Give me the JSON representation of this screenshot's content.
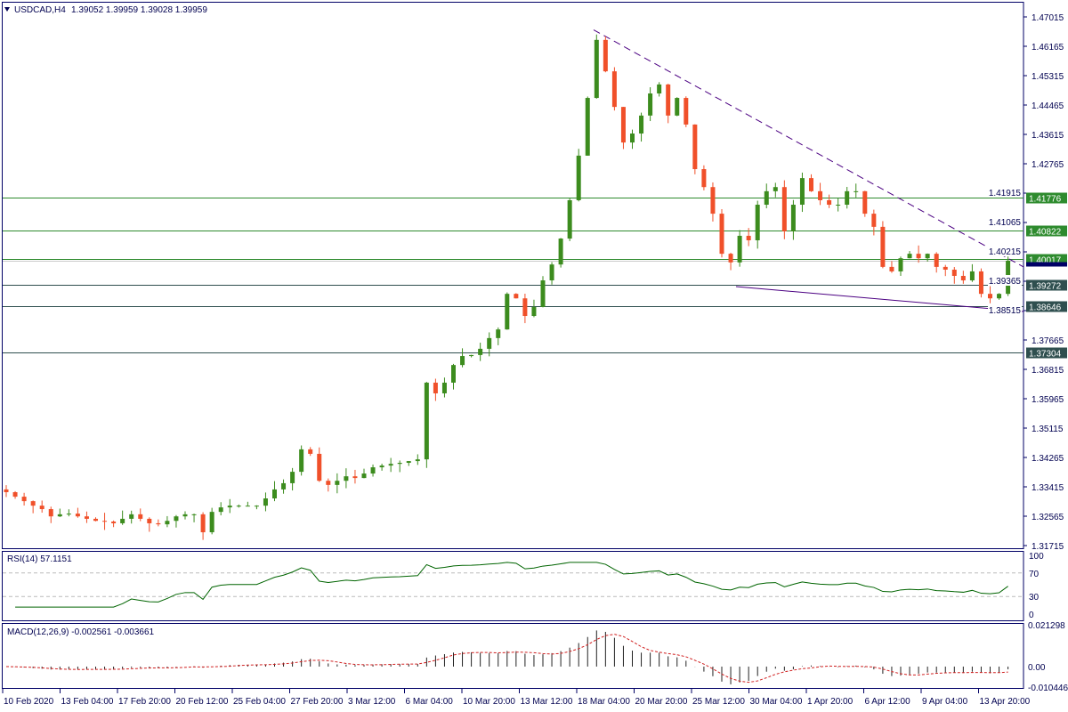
{
  "header": {
    "symbol": "USDCAD,H4",
    "ohlc": "1.39052 1.39959 1.39028 1.39959"
  },
  "colors": {
    "frame": "#000066",
    "bull": "#3c8c1e",
    "bear": "#f0502a",
    "support_line_green": "#2e8b2e",
    "support_line_slate": "#2f4f4f",
    "current_price": "#000066",
    "trendline": "#4b0082",
    "rsi": "#006400",
    "macd_signal": "#d02020"
  },
  "chart_data": {
    "type": "candlestick",
    "title": "USDCAD,H4",
    "price_ticks": [
      "1.47015",
      "1.46165",
      "1.45315",
      "1.44465",
      "1.43615",
      "1.42765",
      "1.41915",
      "1.41065",
      "1.40215",
      "1.39365",
      "1.38515",
      "1.37665",
      "1.36815",
      "1.35965",
      "1.35115",
      "1.34265",
      "1.33415",
      "1.32565",
      "1.31715"
    ],
    "ylim": [
      1.31715,
      1.47015
    ],
    "time_ticks": [
      "10 Feb 2020",
      "13 Feb 04:00",
      "17 Feb 20:00",
      "20 Feb 12:00",
      "25 Feb 04:00",
      "27 Feb 20:00",
      "3 Mar 12:00",
      "6 Mar 04:00",
      "10 Mar 20:00",
      "13 Mar 12:00",
      "18 Mar 04:00",
      "20 Mar 20:00",
      "25 Mar 12:00",
      "30 Mar 04:00",
      "1 Apr 20:00",
      "6 Apr 12:00",
      "9 Apr 04:00",
      "13 Apr 20:00"
    ],
    "closes": [
      1.3326,
      1.3313,
      1.33,
      1.3287,
      1.3277,
      1.3256,
      1.3262,
      1.3264,
      1.3256,
      1.3249,
      1.3243,
      1.3241,
      1.3236,
      1.3249,
      1.3262,
      1.3249,
      1.3236,
      1.3233,
      1.3243,
      1.3256,
      1.3262,
      1.3262,
      1.321,
      1.3269,
      1.3282,
      1.3287,
      1.3287,
      1.3287,
      1.3287,
      1.3308,
      1.3334,
      1.3352,
      1.3385,
      1.345,
      1.3437,
      1.3359,
      1.3347,
      1.3359,
      1.3372,
      1.3367,
      1.338,
      1.3398,
      1.3403,
      1.3408,
      1.3411,
      1.3416,
      1.3421,
      1.3643,
      1.3612,
      1.3643,
      1.3694,
      1.372,
      1.3723,
      1.3741,
      1.3772,
      1.3797,
      1.39,
      1.3887,
      1.3836,
      1.3862,
      1.3939,
      1.3985,
      1.406,
      1.4171,
      1.43,
      1.4467,
      1.4635,
      1.4544,
      1.4441,
      1.4338,
      1.4364,
      1.4416,
      1.448,
      1.4506,
      1.4416,
      1.4467,
      1.439,
      1.4261,
      1.4209,
      1.4132,
      1.4016,
      1.3991,
      1.4068,
      1.4055,
      1.4158,
      1.4197,
      1.4209,
      1.4081,
      1.4158,
      1.4235,
      1.4197,
      1.4171,
      1.4158,
      1.4158,
      1.4197,
      1.4197,
      1.4132,
      1.4094,
      1.3978,
      1.3965,
      1.4003,
      1.4016,
      1.4003,
      1.4016,
      1.3978,
      1.397,
      1.3952,
      1.3939,
      1.3965,
      1.39,
      1.3887,
      1.39,
      1.3996
    ],
    "horizontal_levels": [
      {
        "price": 1.41776,
        "label": "1.41776",
        "color": "green"
      },
      {
        "price": 1.40822,
        "label": "1.40822",
        "color": "green"
      },
      {
        "price": 1.40017,
        "label": "1.40017",
        "color": "green"
      },
      {
        "price": 1.39272,
        "label": "1.39272",
        "color": "slate"
      },
      {
        "price": 1.38646,
        "label": "1.38646",
        "color": "slate"
      },
      {
        "price": 1.37304,
        "label": "1.37304",
        "color": "slate"
      }
    ],
    "current_price": {
      "price": 1.39959,
      "label": "1.39959"
    },
    "trendlines": [
      {
        "name": "upper",
        "from_price": 1.4664,
        "to_price": 1.3978,
        "style": "dashed"
      },
      {
        "name": "lower",
        "from_price": 1.3921,
        "to_price": 1.3849,
        "style": "solid"
      }
    ],
    "rsi": {
      "label": "RSI(14) 57.1151",
      "period": 14,
      "ticks": [
        "100",
        "70",
        "30",
        "0"
      ],
      "levels": [
        70,
        30
      ],
      "ylim": [
        0,
        100
      ]
    },
    "macd": {
      "label": "MACD(12,26,9) -0.002561 -0.003661",
      "fast": 12,
      "slow": 26,
      "signal": 9,
      "ticks": [
        "0.021298",
        "0.00",
        "-0.010446"
      ],
      "ylim": [
        -0.010446,
        0.021298
      ]
    }
  }
}
